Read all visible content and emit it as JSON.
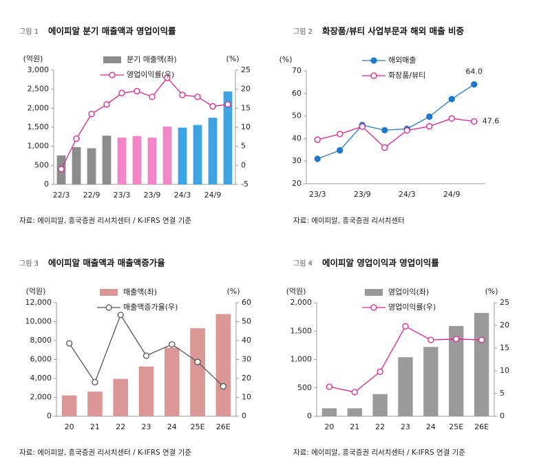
{
  "chart_data": [
    {
      "type": "combo",
      "figure": "그림 1",
      "title": "에이피알 분기 매출액과 영업이익률",
      "source": "자료: 에이피알, 흥국증권 리서치센터 / K-IFRS 연결 기준",
      "y_unit": "(억원)",
      "y2_unit": "(%)",
      "categories": [
        "22/3",
        null,
        "22/9",
        null,
        "23/3",
        null,
        "23/9",
        null,
        "24/3",
        null,
        "24/9",
        null
      ],
      "ylim": [
        0,
        3000
      ],
      "yticks": [
        0,
        500,
        {
          "value": 1000,
          "label": "1,000"
        },
        {
          "value": 1500,
          "label": "1,500"
        },
        {
          "value": 2000,
          "label": "2,000"
        },
        {
          "value": 2500,
          "label": "2,500"
        },
        {
          "value": 3000,
          "label": "3,000"
        }
      ],
      "y2lim": [
        -5,
        25
      ],
      "y2ticks": [
        -5,
        0,
        5,
        10,
        15,
        20,
        25
      ],
      "series": [
        {
          "name": "분기 매출액(좌)",
          "type": "bar",
          "color": "#8c8c8c",
          "colors": [
            "#8c8c8c",
            "#8c8c8c",
            "#8c8c8c",
            "#8c8c8c",
            "#f385c9",
            "#f385c9",
            "#f385c9",
            "#f385c9",
            "#3ea3e2",
            "#3ea3e2",
            "#3ea3e2",
            "#3ea3e2"
          ],
          "values": [
            760,
            980,
            950,
            1280,
            1230,
            1270,
            1230,
            1520,
            1490,
            1560,
            1750,
            2440
          ]
        },
        {
          "name": "영업이익률(우)",
          "type": "line",
          "axis": "y2",
          "color": "#e0208f",
          "marker": "hollow",
          "values": [
            -1,
            7,
            13.5,
            16,
            19,
            19.5,
            18,
            23,
            18.5,
            18,
            15.5,
            16
          ]
        }
      ]
    },
    {
      "type": "line",
      "figure": "그림 2",
      "title": "화장품/뷰티 사업부문과 해외 매출 비중",
      "source": "자료: 에이피알, 흥국증권 리서치센터",
      "y_unit": "(%)",
      "categories": [
        "23/3",
        null,
        "23/9",
        null,
        "24/3",
        null,
        "24/9",
        null
      ],
      "ylim": [
        20,
        70
      ],
      "yticks": [
        20,
        30,
        40,
        50,
        60,
        70
      ],
      "series": [
        {
          "name": "해외매출",
          "type": "line",
          "color": "#1f78c8",
          "marker": "filled",
          "values": [
            31,
            34.8,
            46,
            43.7,
            44.3,
            49.7,
            57.5,
            64.0
          ],
          "value_labels": [
            null,
            null,
            null,
            null,
            null,
            null,
            null,
            "64.0"
          ]
        },
        {
          "name": "화장품/뷰티",
          "type": "line",
          "color": "#e0208f",
          "marker": "hollow",
          "values": [
            39.5,
            42,
            45.3,
            36,
            43.6,
            45.4,
            48.9,
            47.6
          ],
          "value_labels": [
            null,
            null,
            null,
            null,
            null,
            null,
            null,
            "47.6"
          ]
        }
      ]
    },
    {
      "type": "combo",
      "figure": "그림 3",
      "title": "에이피알 매출액과 매출액증가율",
      "source": "자료: 에이피알, 흥국증권 리서치센터 / K-IFRS 연결 기준",
      "y_unit": "(억원)",
      "y2_unit": "(%)",
      "categories": [
        "20",
        "21",
        "22",
        "23",
        "24",
        "25E",
        "26E"
      ],
      "ylim": [
        0,
        12000
      ],
      "yticks": [
        0,
        {
          "value": 2000,
          "label": "2,000"
        },
        {
          "value": 4000,
          "label": "4,000"
        },
        {
          "value": 6000,
          "label": "6,000"
        },
        {
          "value": 8000,
          "label": "8,000"
        },
        {
          "value": 10000,
          "label": "10,000"
        },
        {
          "value": 12000,
          "label": "12,000"
        }
      ],
      "y2lim": [
        0,
        60
      ],
      "y2ticks": [
        0,
        10,
        20,
        30,
        40,
        50,
        60
      ],
      "series": [
        {
          "name": "매출액(좌)",
          "type": "bar",
          "color": "#da9796",
          "values": [
            2200,
            2600,
            3950,
            5250,
            7250,
            9300,
            10800
          ]
        },
        {
          "name": "매출액증가율(우)",
          "type": "line",
          "axis": "y2",
          "color": "#555555",
          "marker": "hollow",
          "values": [
            38.5,
            18,
            53.5,
            32,
            38,
            28.7,
            15.8
          ]
        }
      ]
    },
    {
      "type": "combo",
      "figure": "그림 4",
      "title": "에이피알 영업이익과 영업이익률",
      "source": "자료: 에이피알, 흥국증권 리서치센터 / K-IFRS 연결 기준",
      "y_unit": "(억원)",
      "y2_unit": "(%)",
      "categories": [
        "20",
        "21",
        "22",
        "23",
        "24",
        "25E",
        "26E"
      ],
      "ylim": [
        0,
        2000
      ],
      "yticks": [
        0,
        500,
        {
          "value": 1000,
          "label": "1,000"
        },
        {
          "value": 1500,
          "label": "1,500"
        },
        {
          "value": 2000,
          "label": "2,000"
        }
      ],
      "y2lim": [
        0,
        25
      ],
      "y2ticks": [
        0,
        5,
        10,
        15,
        20,
        25
      ],
      "series": [
        {
          "name": "영업이익(좌)",
          "type": "bar",
          "color": "#9a9a9a",
          "values": [
            140,
            140,
            390,
            1040,
            1220,
            1590,
            1820
          ]
        },
        {
          "name": "영업이익률(우)",
          "type": "line",
          "axis": "y2",
          "color": "#e0208f",
          "marker": "hollow",
          "values": [
            6.5,
            5.3,
            9.8,
            19.8,
            16.8,
            17,
            16.8
          ]
        }
      ]
    }
  ]
}
